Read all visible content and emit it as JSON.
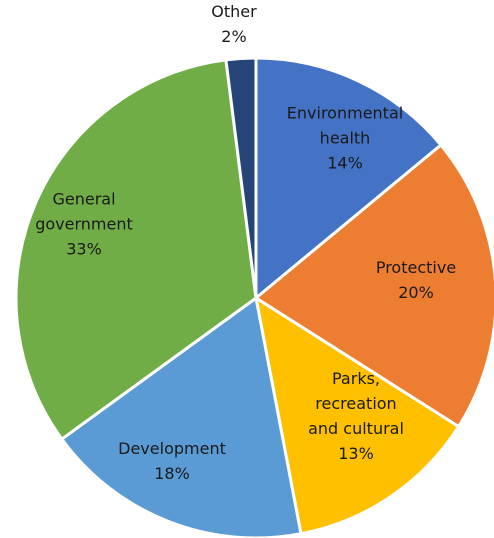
{
  "chart_data": {
    "type": "pie",
    "title": "",
    "start_angle_deg": 0,
    "direction": "clockwise",
    "slices": [
      {
        "name": "Environmental health",
        "label_lines": [
          "Environmental",
          "health"
        ],
        "value_label": "14%",
        "value": 14,
        "color": "#4472c4"
      },
      {
        "name": "Protective",
        "label_lines": [
          "Protective"
        ],
        "value_label": "20%",
        "value": 20,
        "color": "#ed7d31"
      },
      {
        "name": "Parks, recreation and cultural",
        "label_lines": [
          "Parks,",
          "recreation",
          "and cultural"
        ],
        "value_label": "13%",
        "value": 13,
        "color": "#ffc000"
      },
      {
        "name": "Development",
        "label_lines": [
          "Development"
        ],
        "value_label": "18%",
        "value": 18,
        "color": "#5b9bd5"
      },
      {
        "name": "General government",
        "label_lines": [
          "General",
          "government"
        ],
        "value_label": "33%",
        "value": 33,
        "color": "#70ad47"
      },
      {
        "name": "Other",
        "label_lines": [
          "Other"
        ],
        "value_label": "2%",
        "value": 2,
        "color": "#264478"
      }
    ]
  }
}
